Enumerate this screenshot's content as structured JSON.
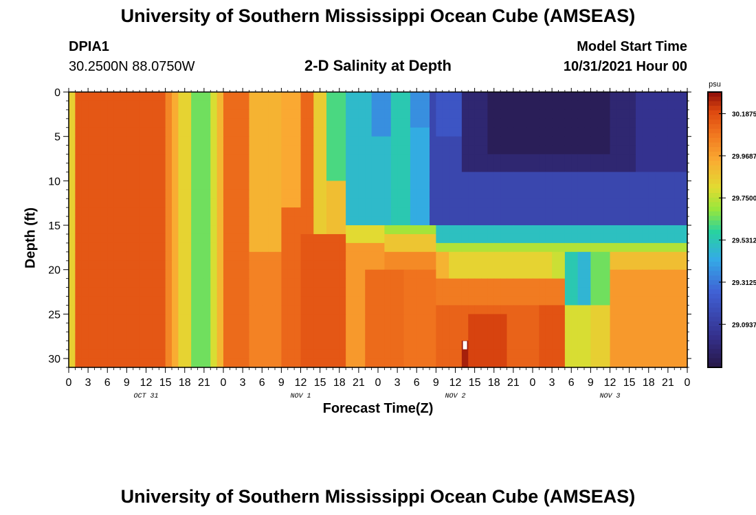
{
  "header": {
    "title": "University of Southern Mississippi Ocean Cube (AMSEAS)",
    "station_id": "DPIA1",
    "coordinates": "30.2500N  88.0750W",
    "subtitle": "2-D Salinity at Depth",
    "model_start_label": "Model Start Time",
    "model_start_value": "10/31/2021 Hour 00"
  },
  "footer": {
    "title_repeat": "University of Southern Mississippi Ocean Cube (AMSEAS)"
  },
  "chart_data": {
    "type": "heatmap",
    "title": "2-D Salinity at Depth",
    "xlabel": "Forecast Time(Z)",
    "ylabel": "Depth (ft)",
    "x_tick_labels": [
      "0",
      "3",
      "6",
      "9",
      "12",
      "15",
      "18",
      "21",
      "0",
      "3",
      "6",
      "9",
      "12",
      "15",
      "18",
      "21",
      "0",
      "3",
      "6",
      "9",
      "12",
      "15",
      "18",
      "21",
      "0",
      "3",
      "6",
      "9",
      "12",
      "15",
      "18",
      "21",
      "0"
    ],
    "x_hours_range": [
      0,
      96
    ],
    "date_labels": [
      {
        "label": "OCT 31",
        "hour": 12
      },
      {
        "label": "NOV 1",
        "hour": 36
      },
      {
        "label": "NOV 2",
        "hour": 60
      },
      {
        "label": "NOV 3",
        "hour": 84
      }
    ],
    "y_ticks": [
      0,
      5,
      10,
      15,
      20,
      25,
      30
    ],
    "ylim": [
      0,
      31
    ],
    "y_inverted": true,
    "colorbar": {
      "unit": "psu",
      "min": 28.87,
      "max": 30.3,
      "tick_values": [
        "30.1875",
        "29.9687",
        "29.7500",
        "29.5312",
        "29.3125",
        "29.0937"
      ]
    },
    "cell_hours": 1,
    "depth_levels_ft": 31,
    "bands": [
      {
        "hours": [
          0,
          1
        ],
        "depth_ft": [
          0,
          31
        ],
        "psu": 29.85
      },
      {
        "hours": [
          1,
          15
        ],
        "depth_ft": [
          0,
          31
        ],
        "psu": 30.17
      },
      {
        "hours": [
          15,
          16
        ],
        "depth_ft": [
          0,
          31
        ],
        "psu": 30.05
      },
      {
        "hours": [
          16,
          17
        ],
        "depth_ft": [
          0,
          31
        ],
        "psu": 29.95
      },
      {
        "hours": [
          17,
          19
        ],
        "depth_ft": [
          0,
          31
        ],
        "psu": 29.84
      },
      {
        "hours": [
          19,
          22
        ],
        "depth_ft": [
          0,
          31
        ],
        "psu": 29.66
      },
      {
        "hours": [
          22,
          23
        ],
        "depth_ft": [
          0,
          31
        ],
        "psu": 29.8
      },
      {
        "hours": [
          23,
          24
        ],
        "depth_ft": [
          0,
          31
        ],
        "psu": 29.92
      },
      {
        "hours": [
          24,
          28
        ],
        "depth_ft": [
          0,
          31
        ],
        "psu": 30.12
      },
      {
        "hours": [
          28,
          33
        ],
        "depth_ft": [
          0,
          31
        ],
        "psu": 29.93
      },
      {
        "hours": [
          33,
          38
        ],
        "depth_ft": [
          0,
          31
        ],
        "psu": 30.13
      },
      {
        "hours": [
          38,
          40
        ],
        "depth_ft": [
          0,
          31
        ],
        "psu": 29.86
      },
      {
        "hours": [
          40,
          96
        ],
        "depth_ft": [
          0,
          31
        ],
        "psu": 30.04
      },
      {
        "hours": [
          28,
          33
        ],
        "depth_ft": [
          18,
          31
        ],
        "psu": 30.06
      },
      {
        "hours": [
          33,
          36
        ],
        "depth_ft": [
          0,
          13
        ],
        "psu": 29.96
      },
      {
        "hours": [
          36,
          43
        ],
        "depth_ft": [
          16,
          31
        ],
        "psu": 30.17
      },
      {
        "hours": [
          40,
          43
        ],
        "depth_ft": [
          10,
          16
        ],
        "psu": 29.9
      },
      {
        "hours": [
          43,
          49
        ],
        "depth_ft": [
          15,
          17
        ],
        "psu": 29.82
      },
      {
        "hours": [
          43,
          49
        ],
        "depth_ft": [
          17,
          31
        ],
        "psu": 30.0
      },
      {
        "hours": [
          46,
          52
        ],
        "depth_ft": [
          20,
          31
        ],
        "psu": 30.12
      },
      {
        "hours": [
          40,
          43
        ],
        "depth_ft": [
          0,
          10
        ],
        "psu": 29.62
      },
      {
        "hours": [
          43,
          50
        ],
        "depth_ft": [
          0,
          15
        ],
        "psu": 29.5
      },
      {
        "hours": [
          47,
          50
        ],
        "depth_ft": [
          0,
          5
        ],
        "psu": 29.38
      },
      {
        "hours": [
          50,
          53
        ],
        "depth_ft": [
          0,
          15
        ],
        "psu": 29.55
      },
      {
        "hours": [
          53,
          56
        ],
        "depth_ft": [
          4,
          15
        ],
        "psu": 29.45
      },
      {
        "hours": [
          53,
          56
        ],
        "depth_ft": [
          0,
          4
        ],
        "psu": 29.38
      },
      {
        "hours": [
          56,
          96
        ],
        "depth_ft": [
          0,
          15
        ],
        "psu": 29.15
      },
      {
        "hours": [
          57,
          61
        ],
        "depth_ft": [
          0,
          5
        ],
        "psu": 29.22
      },
      {
        "hours": [
          61,
          88
        ],
        "depth_ft": [
          0,
          9
        ],
        "psu": 28.98
      },
      {
        "hours": [
          65,
          84
        ],
        "depth_ft": [
          0,
          7
        ],
        "psu": 28.92
      },
      {
        "hours": [
          88,
          96
        ],
        "depth_ft": [
          0,
          9
        ],
        "psu": 29.05
      },
      {
        "hours": [
          49,
          57
        ],
        "depth_ft": [
          15,
          16
        ],
        "psu": 29.72
      },
      {
        "hours": [
          49,
          57
        ],
        "depth_ft": [
          16,
          18
        ],
        "psu": 29.88
      },
      {
        "hours": [
          57,
          96
        ],
        "depth_ft": [
          15,
          17
        ],
        "psu": 29.52
      },
      {
        "hours": [
          57,
          96
        ],
        "depth_ft": [
          17,
          18
        ],
        "psu": 29.74
      },
      {
        "hours": [
          57,
          59
        ],
        "depth_ft": [
          18,
          22
        ],
        "psu": 29.93
      },
      {
        "hours": [
          59,
          75
        ],
        "depth_ft": [
          18,
          21
        ],
        "psu": 29.84
      },
      {
        "hours": [
          75,
          77
        ],
        "depth_ft": [
          18,
          22
        ],
        "psu": 29.78
      },
      {
        "hours": [
          77,
          81
        ],
        "depth_ft": [
          18,
          24
        ],
        "psu": 29.55
      },
      {
        "hours": [
          79,
          81
        ],
        "depth_ft": [
          18,
          26
        ],
        "psu": 29.48
      },
      {
        "hours": [
          81,
          84
        ],
        "depth_ft": [
          18,
          24
        ],
        "psu": 29.66
      },
      {
        "hours": [
          81,
          84
        ],
        "depth_ft": [
          24,
          31
        ],
        "psu": 29.85
      },
      {
        "hours": [
          77,
          81
        ],
        "depth_ft": [
          24,
          31
        ],
        "psu": 29.8
      },
      {
        "hours": [
          84,
          96
        ],
        "depth_ft": [
          18,
          20
        ],
        "psu": 29.9
      },
      {
        "hours": [
          84,
          96
        ],
        "depth_ft": [
          20,
          31
        ],
        "psu": 30.0
      },
      {
        "hours": [
          52,
          57
        ],
        "depth_ft": [
          20,
          31
        ],
        "psu": 30.1
      },
      {
        "hours": [
          57,
          77
        ],
        "depth_ft": [
          21,
          24
        ],
        "psu": 30.08
      },
      {
        "hours": [
          57,
          77
        ],
        "depth_ft": [
          24,
          31
        ],
        "psu": 30.14
      },
      {
        "hours": [
          62,
          68
        ],
        "depth_ft": [
          25,
          31
        ],
        "psu": 30.22
      },
      {
        "hours": [
          73,
          77
        ],
        "depth_ft": [
          24,
          31
        ],
        "psu": 30.18
      },
      {
        "hours": [
          61,
          62
        ],
        "depth_ft": [
          29,
          31
        ],
        "psu": 30.28
      },
      {
        "hours": [
          61,
          62
        ],
        "depth_ft": [
          28,
          29
        ],
        "psu": 30.3
      }
    ],
    "highlight_cells": [
      {
        "hour": 61.5,
        "depth_ft": 28.5,
        "note": "white"
      }
    ]
  }
}
